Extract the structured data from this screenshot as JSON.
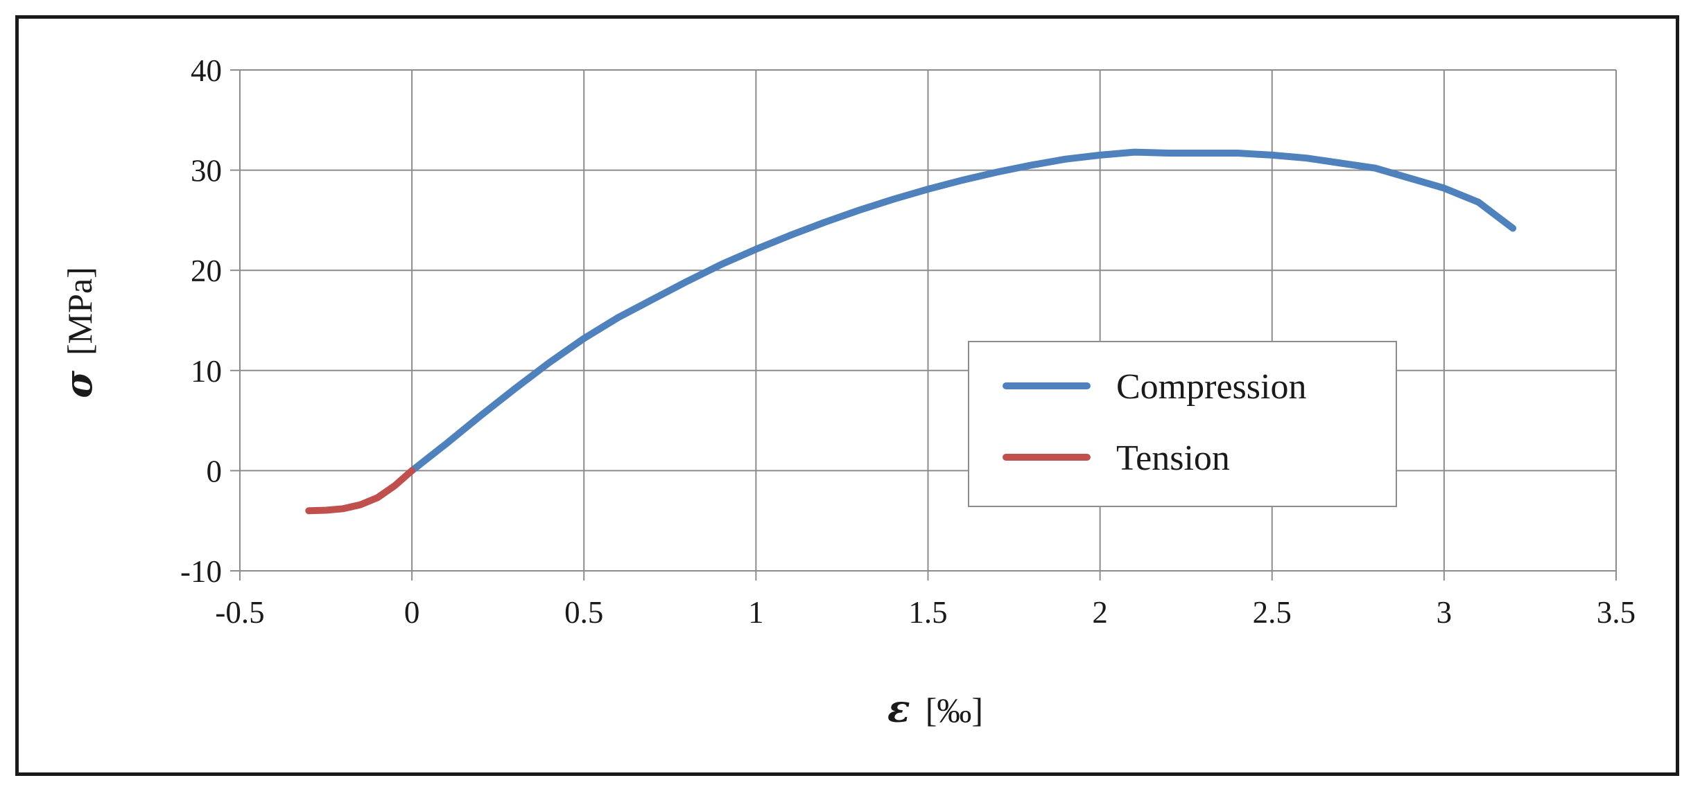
{
  "chart_data": {
    "type": "line",
    "xlabel": {
      "symbol": "ε",
      "unit": "[‰]"
    },
    "ylabel": {
      "symbol": "σ",
      "unit": "[MPa]"
    },
    "xlim": [
      -0.5,
      3.5
    ],
    "ylim": [
      -10,
      40
    ],
    "x_ticks": [
      "-0.5",
      "0",
      "0.5",
      "1",
      "1.5",
      "2",
      "2.5",
      "3",
      "3.5"
    ],
    "y_ticks": [
      "-10",
      "0",
      "10",
      "20",
      "30",
      "40"
    ],
    "grid": true,
    "legend_position": "center-right",
    "series": [
      {
        "name": "Compression",
        "color": "#4f81bd",
        "points": [
          [
            0,
            0
          ],
          [
            0.1,
            2.7
          ],
          [
            0.2,
            5.5
          ],
          [
            0.3,
            8.2
          ],
          [
            0.4,
            10.8
          ],
          [
            0.5,
            13.2
          ],
          [
            0.6,
            15.3
          ],
          [
            0.7,
            17.1
          ],
          [
            0.8,
            18.9
          ],
          [
            0.9,
            20.6
          ],
          [
            1.0,
            22.1
          ],
          [
            1.1,
            23.5
          ],
          [
            1.2,
            24.8
          ],
          [
            1.3,
            26.0
          ],
          [
            1.4,
            27.1
          ],
          [
            1.5,
            28.1
          ],
          [
            1.6,
            29.0
          ],
          [
            1.7,
            29.8
          ],
          [
            1.8,
            30.5
          ],
          [
            1.9,
            31.1
          ],
          [
            2.0,
            31.5
          ],
          [
            2.1,
            31.8
          ],
          [
            2.2,
            31.7
          ],
          [
            2.3,
            31.7
          ],
          [
            2.4,
            31.7
          ],
          [
            2.5,
            31.5
          ],
          [
            2.6,
            31.2
          ],
          [
            2.7,
            30.7
          ],
          [
            2.8,
            30.2
          ],
          [
            2.9,
            29.2
          ],
          [
            3.0,
            28.2
          ],
          [
            3.1,
            26.8
          ],
          [
            3.2,
            24.2
          ]
        ]
      },
      {
        "name": "Tension",
        "color": "#c0504d",
        "points": [
          [
            -0.3,
            -4.0
          ],
          [
            -0.25,
            -3.95
          ],
          [
            -0.2,
            -3.8
          ],
          [
            -0.15,
            -3.4
          ],
          [
            -0.1,
            -2.7
          ],
          [
            -0.05,
            -1.5
          ],
          [
            0,
            0
          ]
        ]
      }
    ]
  }
}
